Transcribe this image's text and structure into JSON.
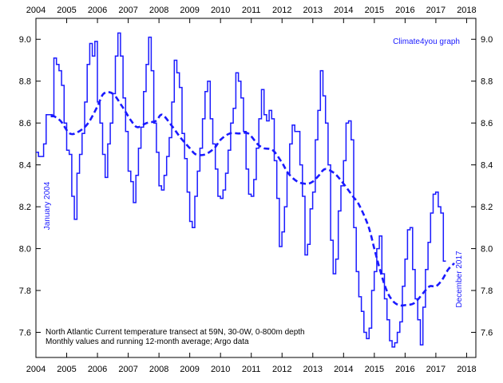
{
  "chart_data": {
    "type": "line",
    "title": "",
    "xlabel": "",
    "ylabel": "",
    "credit": "Climate4you graph",
    "caption_line1": "North Atlantic Current temperature transect at 59N, 30-0W, 0-800m depth",
    "caption_line2": "Monthly values and running 12-month average; Argo data",
    "start_label": "January 2004",
    "end_label": "December 2017",
    "xlim": [
      2004.0,
      2018.3
    ],
    "ylim": [
      7.48,
      9.1
    ],
    "x_ticks": [
      2004,
      2005,
      2006,
      2007,
      2008,
      2009,
      2010,
      2011,
      2012,
      2013,
      2014,
      2015,
      2016,
      2017,
      2018
    ],
    "y_ticks": [
      7.6,
      7.8,
      8.0,
      8.2,
      8.4,
      8.6,
      8.8,
      9.0
    ],
    "grid": false,
    "colors": {
      "line": "#1a1aff",
      "axis": "#000000",
      "text_accent": "#1a1aff"
    },
    "series": [
      {
        "style": "step",
        "start_year": 2004.0,
        "step_years": 0.0833,
        "values": [
          8.46,
          8.44,
          8.44,
          8.5,
          8.64,
          8.64,
          8.63,
          8.91,
          8.88,
          8.85,
          8.78,
          8.6,
          8.47,
          8.45,
          8.25,
          8.14,
          8.36,
          8.45,
          8.55,
          8.7,
          8.88,
          8.98,
          8.92,
          8.99,
          8.7,
          8.6,
          8.45,
          8.34,
          8.5,
          8.6,
          8.74,
          8.92,
          9.03,
          8.92,
          8.72,
          8.56,
          8.37,
          8.32,
          8.22,
          8.35,
          8.48,
          8.58,
          8.75,
          8.88,
          9.01,
          8.85,
          8.6,
          8.46,
          8.3,
          8.28,
          8.35,
          8.44,
          8.53,
          8.7,
          8.9,
          8.84,
          8.77,
          8.55,
          8.43,
          8.27,
          8.13,
          8.1,
          8.25,
          8.37,
          8.48,
          8.62,
          8.75,
          8.8,
          8.62,
          8.5,
          8.38,
          8.25,
          8.24,
          8.28,
          8.36,
          8.47,
          8.6,
          8.67,
          8.84,
          8.8,
          8.72,
          8.56,
          8.38,
          8.26,
          8.25,
          8.33,
          8.48,
          8.62,
          8.76,
          8.64,
          8.61,
          8.66,
          8.62,
          8.42,
          8.24,
          8.01,
          8.08,
          8.2,
          8.36,
          8.5,
          8.59,
          8.56,
          8.56,
          8.4,
          8.25,
          7.97,
          8.02,
          8.19,
          8.27,
          8.52,
          8.66,
          8.85,
          8.73,
          8.6,
          8.4,
          8.04,
          7.88,
          7.95,
          8.18,
          8.3,
          8.42,
          8.6,
          8.61,
          8.52,
          8.1,
          7.89,
          7.77,
          7.7,
          7.6,
          7.57,
          7.62,
          7.8,
          7.89,
          8.0,
          8.06,
          7.88,
          7.76,
          7.66,
          7.56,
          7.53,
          7.55,
          7.6,
          7.65,
          7.82,
          7.95,
          8.09,
          8.1,
          7.9,
          7.76,
          7.66,
          7.54,
          7.72,
          7.9,
          8.03,
          8.17,
          8.26,
          8.27,
          8.2,
          8.17,
          7.94
        ]
      },
      {
        "style": "dashed",
        "x": [
          2004.5,
          2004.8,
          2005.1,
          2005.4,
          2005.7,
          2006.0,
          2006.2,
          2006.5,
          2006.8,
          2007.1,
          2007.3,
          2007.6,
          2007.9,
          2008.1,
          2008.4,
          2008.7,
          2009.0,
          2009.2,
          2009.5,
          2009.8,
          2010.0,
          2010.3,
          2010.6,
          2010.9,
          2011.2,
          2011.4,
          2011.7,
          2012.0,
          2012.2,
          2012.5,
          2012.8,
          2013.0,
          2013.2,
          2013.4,
          2013.7,
          2014.0,
          2014.3,
          2014.5,
          2014.8,
          2015.0,
          2015.2,
          2015.4,
          2015.6,
          2015.8,
          2016.0,
          2016.3,
          2016.6,
          2016.8,
          2017.0,
          2017.2,
          2017.4,
          2017.6
        ],
        "values": [
          8.64,
          8.61,
          8.55,
          8.56,
          8.6,
          8.68,
          8.74,
          8.74,
          8.68,
          8.61,
          8.58,
          8.6,
          8.61,
          8.64,
          8.59,
          8.53,
          8.48,
          8.45,
          8.45,
          8.48,
          8.52,
          8.55,
          8.55,
          8.55,
          8.5,
          8.48,
          8.47,
          8.41,
          8.36,
          8.32,
          8.31,
          8.32,
          8.35,
          8.38,
          8.36,
          8.31,
          8.25,
          8.21,
          8.11,
          8.0,
          7.89,
          7.8,
          7.75,
          7.73,
          7.73,
          7.74,
          7.79,
          7.82,
          7.82,
          7.85,
          7.9,
          7.93
        ]
      }
    ]
  }
}
